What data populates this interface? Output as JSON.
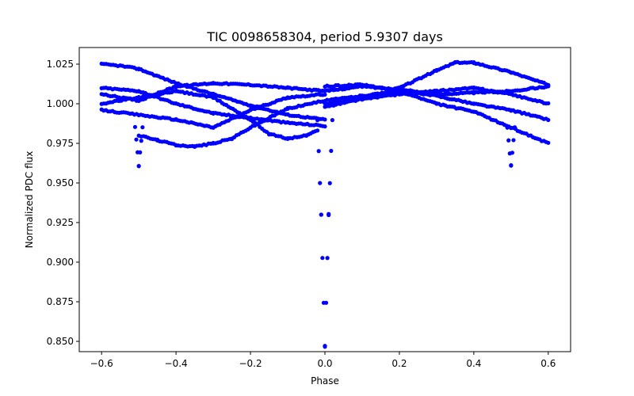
{
  "chart_data": {
    "type": "scatter",
    "title": "TIC 0098658304, period 5.9307 days",
    "xlabel": "Phase",
    "ylabel": "Normalized PDC flux",
    "xlim": [
      -0.66,
      0.66
    ],
    "ylim": [
      0.8435,
      1.0355
    ],
    "xticks": [
      -0.6,
      -0.4,
      -0.2,
      0.0,
      0.2,
      0.4,
      0.6
    ],
    "xtick_labels": [
      "−0.6",
      "−0.4",
      "−0.2",
      "0.0",
      "0.2",
      "0.4",
      "0.6"
    ],
    "yticks": [
      0.85,
      0.875,
      0.9,
      0.925,
      0.95,
      0.975,
      1.0,
      1.025
    ],
    "ytick_labels": [
      "0.850",
      "0.875",
      "0.900",
      "0.925",
      "0.950",
      "0.975",
      "1.000",
      "1.025"
    ],
    "marker_color": "#0000ff",
    "series": [
      {
        "name": "flux",
        "description_points": "phase-folded light curve with primary eclipse at phase 0.0 reaching ~0.847 and secondary dips near phase -0.5 and 0.5 reaching ~0.961",
        "strands": [
          {
            "x": [
              -0.6,
              -0.55,
              -0.5
            ],
            "y": [
              1.025,
              1.024,
              1.022
            ]
          },
          {
            "x": [
              -0.5,
              -0.4,
              -0.3,
              -0.2,
              -0.1,
              0.0
            ],
            "y": [
              1.022,
              1.013,
              1.006,
              0.999,
              0.993,
              0.99
            ]
          },
          {
            "x": [
              -0.6,
              -0.5,
              -0.4,
              -0.3,
              -0.2,
              -0.1,
              0.0
            ],
            "y": [
              1.01,
              1.008,
              1.0,
              0.994,
              0.991,
              0.988,
              0.986
            ]
          },
          {
            "x": [
              -0.6,
              -0.5,
              -0.4,
              -0.3,
              -0.2,
              -0.1,
              0.0
            ],
            "y": [
              1.006,
              1.002,
              1.011,
              1.013,
              1.012,
              1.01,
              1.008
            ]
          },
          {
            "x": [
              -0.6,
              -0.5,
              -0.4,
              -0.3,
              -0.2,
              -0.1,
              0.0
            ],
            "y": [
              0.996,
              0.993,
              0.99,
              0.985,
              0.996,
              1.004,
              1.006
            ]
          },
          {
            "x": [
              -0.5,
              -0.45,
              -0.4,
              -0.35,
              -0.3,
              -0.25,
              -0.2,
              -0.1,
              0.0
            ],
            "y": [
              0.98,
              0.977,
              0.974,
              0.973,
              0.975,
              0.978,
              0.985,
              0.997,
              1.002
            ]
          },
          {
            "x": [
              -0.6,
              -0.5,
              -0.4,
              -0.3,
              -0.2,
              -0.15,
              -0.1,
              -0.05,
              -0.02
            ],
            "y": [
              1.0,
              1.004,
              1.008,
              1.004,
              0.99,
              0.981,
              0.978,
              0.98,
              0.983
            ]
          },
          {
            "x": [
              0.0,
              0.1,
              0.2,
              0.3,
              0.35,
              0.4,
              0.5,
              0.6
            ],
            "y": [
              1.0,
              1.003,
              1.01,
              1.021,
              1.026,
              1.026,
              1.02,
              1.012
            ]
          },
          {
            "x": [
              0.0,
              0.1,
              0.2,
              0.3,
              0.4,
              0.5,
              0.6
            ],
            "y": [
              1.011,
              1.012,
              1.008,
              1.0,
              0.995,
              0.985,
              0.975
            ]
          },
          {
            "x": [
              0.0,
              0.1,
              0.2,
              0.3,
              0.4,
              0.5,
              0.6
            ],
            "y": [
              1.008,
              1.011,
              1.009,
              1.006,
              1.007,
              1.008,
              1.011
            ]
          },
          {
            "x": [
              0.0,
              0.1,
              0.2,
              0.3,
              0.4,
              0.5,
              0.6
            ],
            "y": [
              1.002,
              1.005,
              1.008,
              1.005,
              1.0,
              0.996,
              0.99
            ]
          },
          {
            "x": [
              0.0,
              0.1,
              0.2,
              0.3,
              0.4,
              0.5,
              0.6
            ],
            "y": [
              0.998,
              1.003,
              1.006,
              1.008,
              1.01,
              1.006,
              1.0
            ]
          },
          {
            "x": [
              -0.02,
              -0.01,
              0.0,
              0.01,
              0.02
            ],
            "y": [
              0.99,
              0.93,
              0.847,
              0.93,
              0.99
            ]
          },
          {
            "x": [
              -0.51,
              -0.5,
              -0.49
            ],
            "y": [
              0.985,
              0.961,
              0.985
            ]
          },
          {
            "x": [
              0.49,
              0.5,
              0.51
            ],
            "y": [
              0.985,
              0.961,
              0.985
            ]
          }
        ]
      }
    ]
  }
}
